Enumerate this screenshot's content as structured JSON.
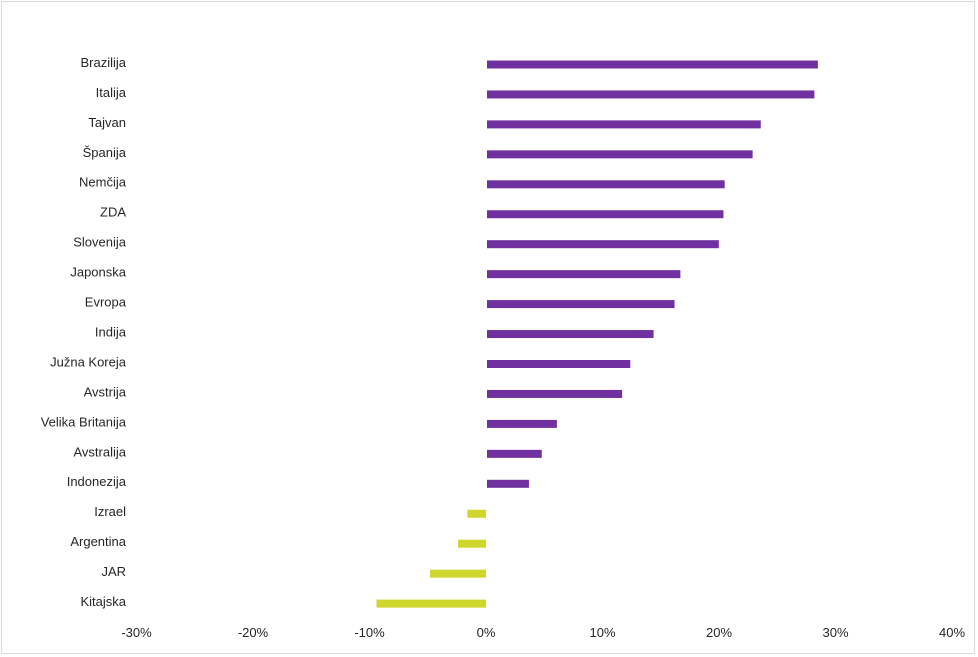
{
  "chart_data": {
    "type": "bar",
    "orientation": "horizontal",
    "categories": [
      "Brazilija",
      "Italija",
      "Tajvan",
      "Španija",
      "Nemčija",
      "ZDA",
      "Slovenija",
      "Japonska",
      "Evropa",
      "Indija",
      "Južna Koreja",
      "Avstrija",
      "Velika Britanija",
      "Avstralija",
      "Indonezija",
      "Izrael",
      "Argentina",
      "JAR",
      "Kitajska"
    ],
    "values": [
      28.4,
      28.1,
      23.5,
      22.8,
      20.4,
      20.3,
      19.9,
      16.6,
      16.1,
      14.3,
      12.3,
      11.6,
      6.0,
      4.7,
      3.6,
      -1.6,
      -2.4,
      -4.8,
      -9.4
    ],
    "xlim": [
      -30,
      40
    ],
    "x_ticks": [
      -30,
      -20,
      -10,
      0,
      10,
      20,
      30,
      40
    ],
    "x_tick_labels": [
      "-30%",
      "-20%",
      "-10%",
      "0%",
      "10%",
      "20%",
      "30%",
      "40%"
    ],
    "title": "",
    "xlabel": "",
    "ylabel": "",
    "grid": false,
    "legend": false,
    "positive_color": "#7030a0",
    "negative_color": "#cfd62c"
  }
}
